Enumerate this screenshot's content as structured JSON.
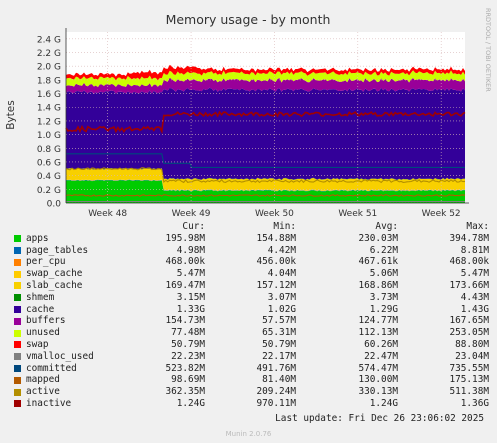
{
  "chart_data": {
    "type": "area",
    "title": "Memory usage - by month",
    "ylabel": "Bytes",
    "watermark": "RRDTOOL / TOBI OETIKER",
    "x_ticks": [
      "Week 48",
      "Week 49",
      "Week 50",
      "Week 51",
      "Week 52"
    ],
    "y_ticks": [
      "0.0",
      "0.2 G",
      "0.4 G",
      "0.6 G",
      "0.8 G",
      "1.0 G",
      "1.2 G",
      "1.4 G",
      "1.6 G",
      "1.8 G",
      "2.0 G",
      "2.2 G",
      "2.4 G"
    ],
    "ylim": [
      0,
      2.5
    ],
    "y_unit": "G",
    "x_range_days": [
      -3.5,
      30
    ],
    "grid": true,
    "columns": [
      "Cur:",
      "Min:",
      "Avg:",
      "Max:"
    ],
    "series": [
      {
        "name": "apps",
        "color": "#00cc00",
        "cur": "195.98M",
        "min": "154.88M",
        "avg": "230.03M",
        "max": "394.78M"
      },
      {
        "name": "page_tables",
        "color": "#0066b3",
        "cur": "4.98M",
        "min": "4.42M",
        "avg": "6.22M",
        "max": "8.81M"
      },
      {
        "name": "per_cpu",
        "color": "#ff8000",
        "cur": "468.00k",
        "min": "456.00k",
        "avg": "467.61k",
        "max": "468.00k"
      },
      {
        "name": "swap_cache",
        "color": "#ffcc00",
        "cur": "5.47M",
        "min": "4.04M",
        "avg": "5.06M",
        "max": "5.47M"
      },
      {
        "name": "slab_cache",
        "color": "#f8d000",
        "cur": "169.47M",
        "min": "157.12M",
        "avg": "168.86M",
        "max": "173.66M"
      },
      {
        "name": "shmem",
        "color": "#008f00",
        "cur": "3.15M",
        "min": "3.07M",
        "avg": "3.73M",
        "max": "4.43M"
      },
      {
        "name": "cache",
        "color": "#330099",
        "cur": "1.33G",
        "min": "1.02G",
        "avg": "1.29G",
        "max": "1.43G"
      },
      {
        "name": "buffers",
        "color": "#990099",
        "cur": "154.73M",
        "min": "57.57M",
        "avg": "124.77M",
        "max": "167.65M"
      },
      {
        "name": "unused",
        "color": "#ccff00",
        "cur": "77.48M",
        "min": "65.31M",
        "avg": "112.13M",
        "max": "253.05M"
      },
      {
        "name": "swap",
        "color": "#ff0000",
        "cur": "50.79M",
        "min": "50.79M",
        "avg": "60.26M",
        "max": "88.80M"
      },
      {
        "name": "vmalloc_used",
        "color": "#808080",
        "cur": "22.23M",
        "min": "22.17M",
        "avg": "22.47M",
        "max": "23.04M"
      },
      {
        "name": "committed",
        "color": "#00487d",
        "cur": "523.82M",
        "min": "491.76M",
        "avg": "574.47M",
        "max": "735.55M"
      },
      {
        "name": "mapped",
        "color": "#b35a00",
        "cur": "98.69M",
        "min": "81.40M",
        "avg": "130.00M",
        "max": "175.13M"
      },
      {
        "name": "active",
        "color": "#b38f00",
        "cur": "362.35M",
        "min": "209.24M",
        "avg": "330.13M",
        "max": "511.38M"
      },
      {
        "name": "inactive",
        "color": "#a00000",
        "cur": "1.24G",
        "min": "970.11M",
        "avg": "1.24G",
        "max": "1.36G"
      }
    ],
    "last_update": "Last update:  Fri Dec 26 23:06:02 2025",
    "footer": "Munin 2.0.76"
  }
}
